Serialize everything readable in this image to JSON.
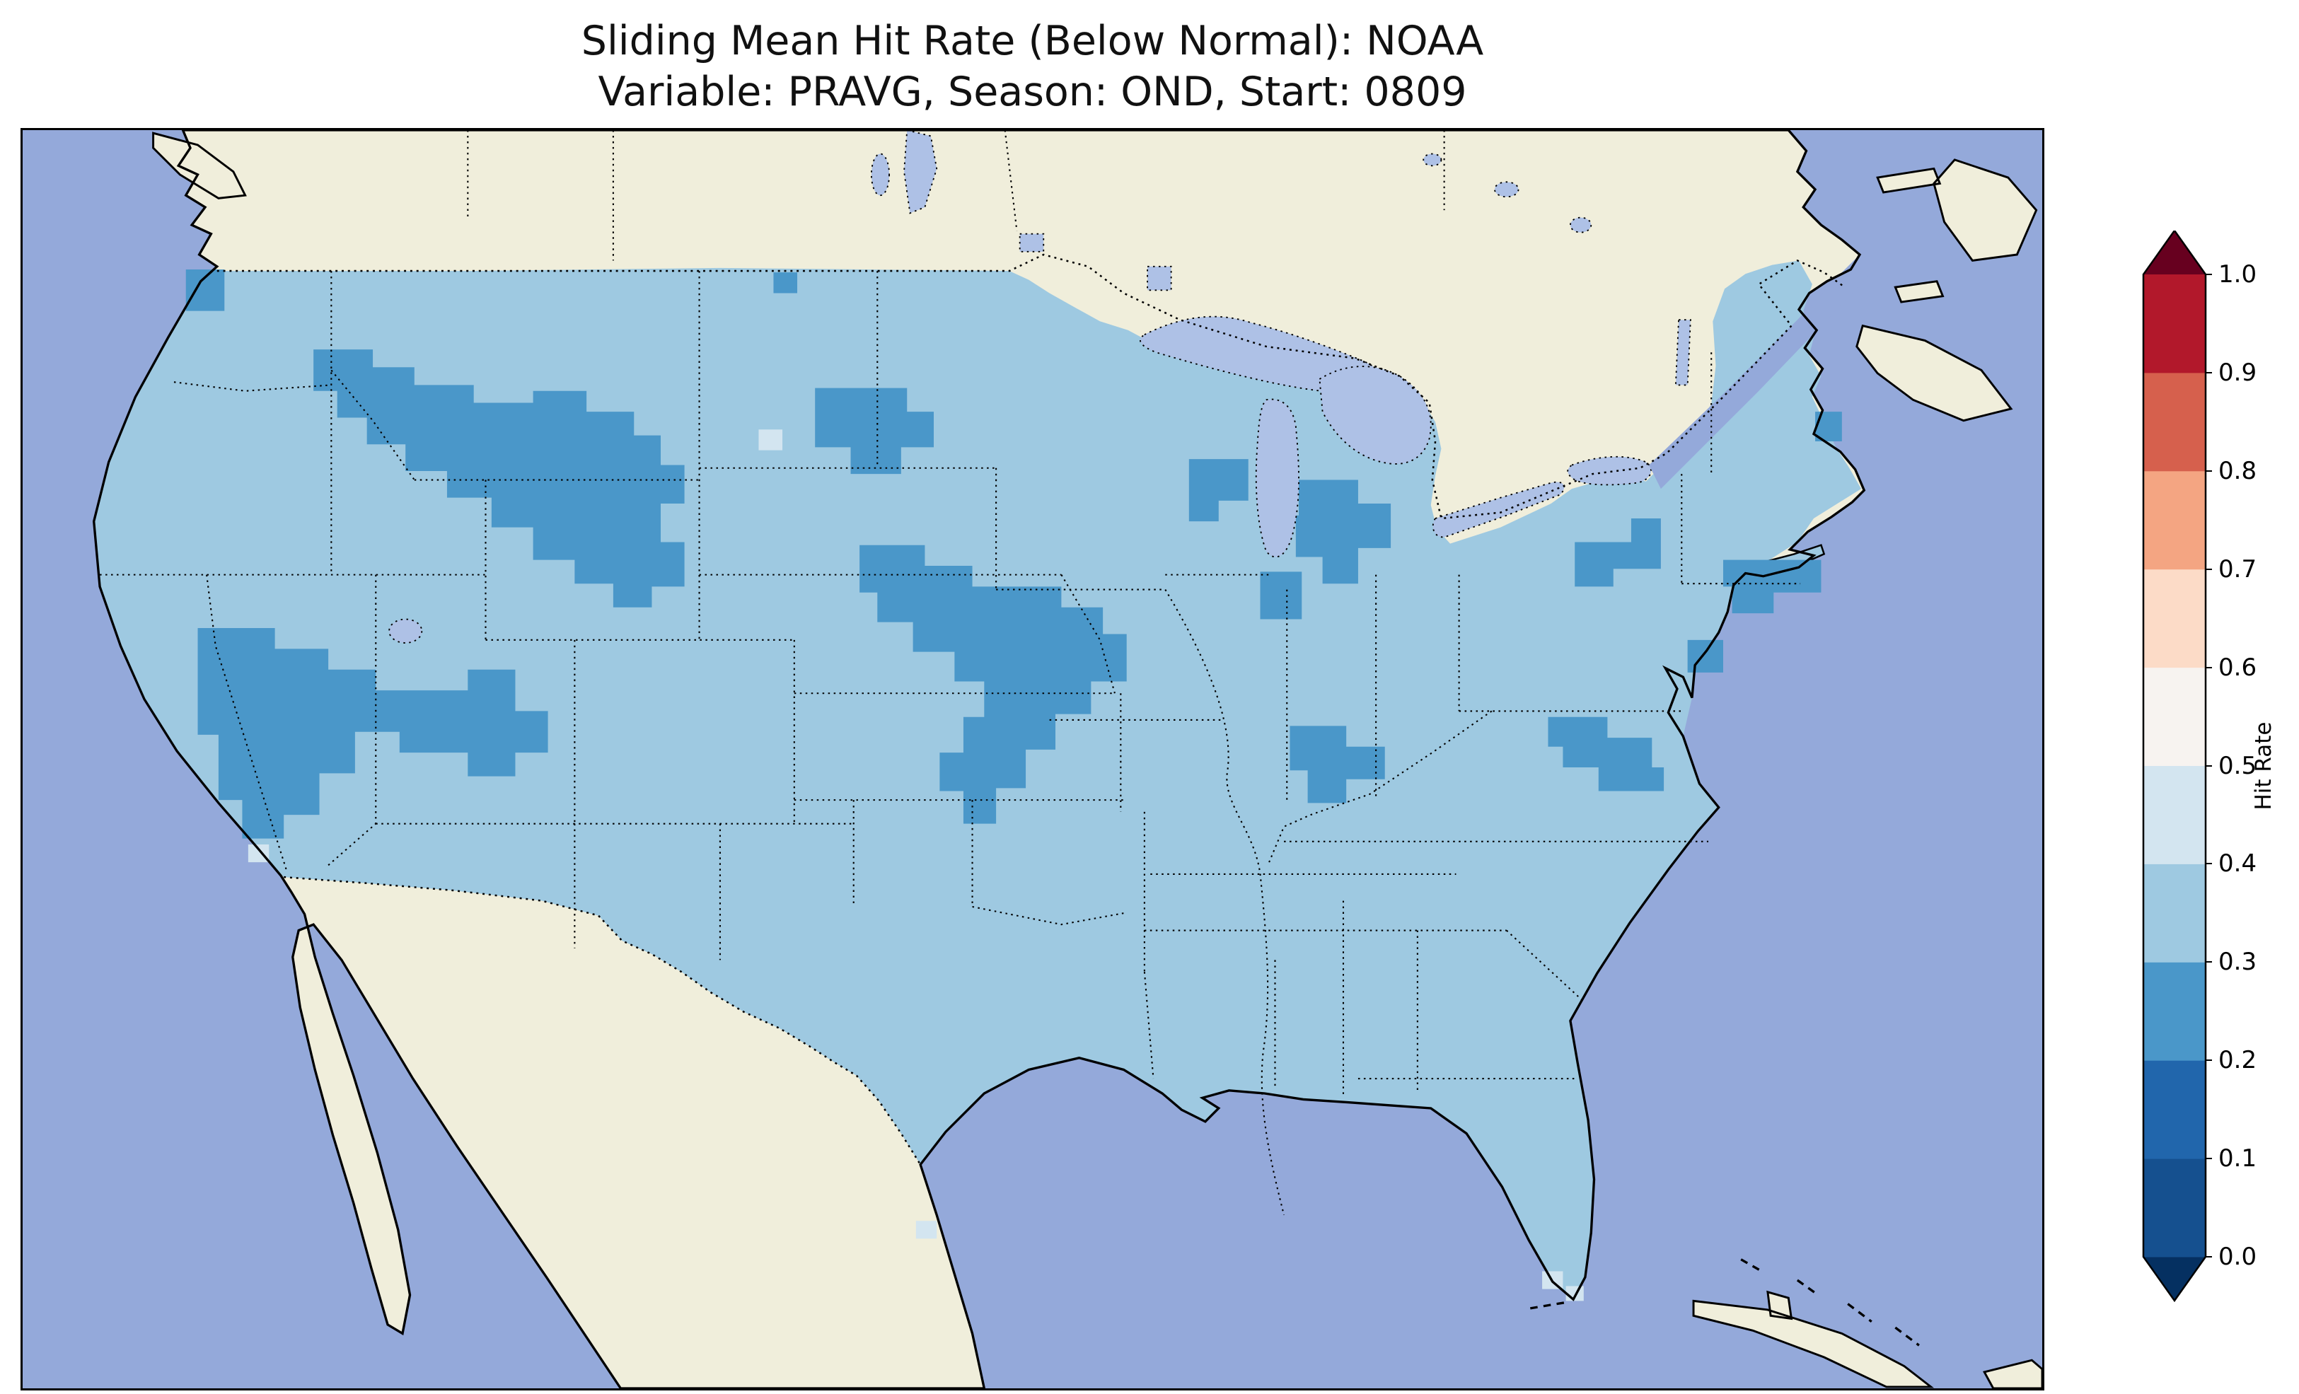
{
  "figure": {
    "title_line1": "Sliding Mean Hit Rate (Below Normal): NOAA",
    "title_line2": "Variable: PRAVG, Season: OND, Start: 0809"
  },
  "colorbar": {
    "label": "Hit Rate",
    "ticks": [
      "0.0",
      "0.1",
      "0.2",
      "0.3",
      "0.4",
      "0.5",
      "0.6",
      "0.7",
      "0.8",
      "0.9",
      "1.0"
    ],
    "segments_bottom_to_top": [
      "#15508f",
      "#2166ac",
      "#4a97c9",
      "#9ec9e1",
      "#d3e5f0",
      "#f7f3f0",
      "#fcdbc7",
      "#f4a582",
      "#d6604d",
      "#b2182b"
    ],
    "under_arrow_color": "#053061",
    "over_arrow_color": "#67001f"
  },
  "map": {
    "colors": {
      "ocean": "#94a9da",
      "land": "#f0eedb",
      "lake": "#aec1e6",
      "bin23": "#4a97c9",
      "bin34": "#9ec9e1",
      "bin45": "#d3e5f0"
    }
  },
  "chart_data": {
    "type": "heatmap",
    "title": "Sliding Mean Hit Rate (Below Normal): NOAA",
    "subtitle": "Variable: PRAVG, Season: OND, Start: 0809",
    "variable": "PRAVG",
    "season": "OND",
    "start": "0809",
    "forecast_category": "Below Normal",
    "source_label": "NOAA",
    "colorbar_label": "Hit Rate",
    "value_range": [
      0.0,
      1.0
    ],
    "bin_width": 0.1,
    "colorbar_extend": "both",
    "colormap": "RdBu_r discrete (blue = low hit rate, red = high hit rate)",
    "map_region": "Contiguous United States with surrounding Canada, Mexico, Gulf of Mexico, Atlantic and Pacific coasts",
    "observed_regions": [
      {
        "region": "Most of CONUS (dominant value)",
        "hit_rate_bin": "0.3-0.4"
      },
      {
        "region": "Montana / Idaho / Wyoming northern Rockies and high plains",
        "hit_rate_bin": "0.2-0.3"
      },
      {
        "region": "Central North Dakota / South Dakota",
        "hit_rate_bin": "0.2-0.3"
      },
      {
        "region": "Nevada / Utah / western Colorado Great Basin",
        "hit_rate_bin": "0.2-0.3"
      },
      {
        "region": "Nebraska / Kansas central plains",
        "hit_rate_bin": "0.2-0.3"
      },
      {
        "region": "Wisconsin / Michigan around Lake Michigan",
        "hit_rate_bin": "0.2-0.3"
      },
      {
        "region": "Southern Indiana / Ohio valley",
        "hit_rate_bin": "0.2-0.3"
      },
      {
        "region": "Upstate New York and southern New England",
        "hit_rate_bin": "0.2-0.3"
      },
      {
        "region": "Maryland / Virginia mid-Atlantic",
        "hit_rate_bin": "0.2-0.3"
      },
      {
        "region": "Scattered single cells (south Florida, Texas coast, southern California coast, northern plains)",
        "hit_rate_bin": "0.4-0.5"
      },
      {
        "region": "Canada, Mexico, oceans",
        "hit_rate_bin": "no data (masked)"
      }
    ]
  }
}
